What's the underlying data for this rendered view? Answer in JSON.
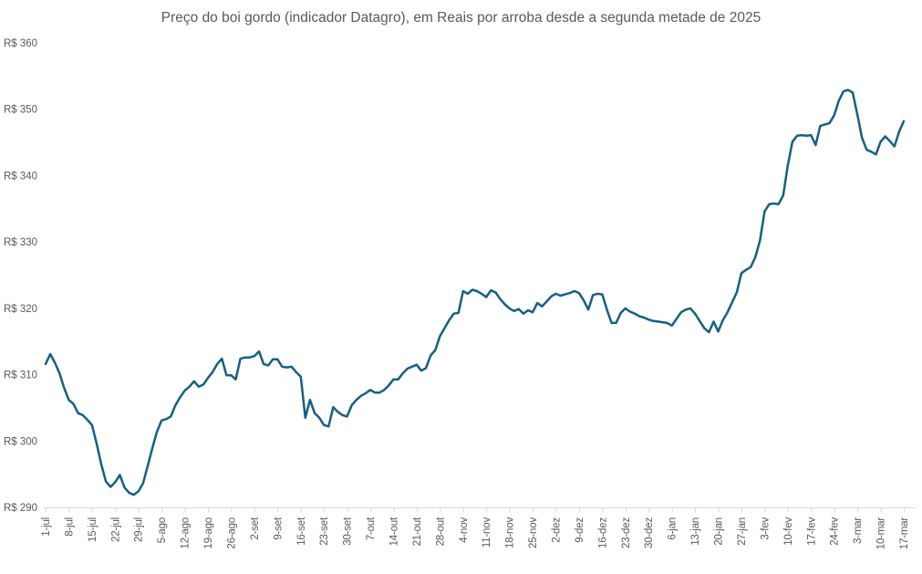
{
  "page": {
    "background": "#ffffff"
  },
  "chart_data": {
    "type": "line",
    "title": "Preço do boi gordo (indicador Datagro), em Reais por arroba desde a segunda metade de 2025",
    "title_color": "#595959",
    "label_color": "#595959",
    "axis_color": "#d9d9d9",
    "grid": false,
    "legend": false,
    "y_axis": {
      "min": 290,
      "max": 360,
      "step": 10,
      "tick_values": [
        360,
        350,
        340,
        330,
        320,
        310,
        300,
        290
      ],
      "tick_labels": [
        "R$ 360",
        "R$ 350",
        "R$ 340",
        "R$ 330",
        "R$ 320",
        "R$ 310",
        "R$ 300",
        "R$ 290"
      ]
    },
    "x_axis": {
      "points_per_tick": 5,
      "tick_labels": [
        "1-jul",
        "8-jul",
        "15-jul",
        "22-jul",
        "29-jul",
        "5-ago",
        "12-ago",
        "19-ago",
        "26-ago",
        "2-set",
        "9-set",
        "16-set",
        "23-set",
        "30-set",
        "7-out",
        "14-out",
        "21-out",
        "28-out",
        "4-nov",
        "11-nov",
        "18-nov",
        "25-nov",
        "2-dez",
        "9-dez",
        "16-dez",
        "23-dez",
        "30-dez",
        "6-jan",
        "13-jan",
        "20-jan",
        "27-jan",
        "3-fev",
        "10-fev",
        "17-fev",
        "24-fev",
        "3-mar",
        "10-mar",
        "17-mar"
      ]
    },
    "series": [
      {
        "color": "#156082",
        "values": [
          311.6,
          313.1,
          311.8,
          310.2,
          308.0,
          306.2,
          305.6,
          304.2,
          303.9,
          303.2,
          302.4,
          299.6,
          296.5,
          293.9,
          293.1,
          293.8,
          294.9,
          293.0,
          292.2,
          291.9,
          292.4,
          293.6,
          296.2,
          298.9,
          301.4,
          303.1,
          303.3,
          303.7,
          305.4,
          306.6,
          307.6,
          308.2,
          309.0,
          308.2,
          308.5,
          309.5,
          310.4,
          311.6,
          312.4,
          309.9,
          309.9,
          309.3,
          312.4,
          312.6,
          312.6,
          312.8,
          313.5,
          311.6,
          311.4,
          312.3,
          312.3,
          311.2,
          311.1,
          311.2,
          310.4,
          309.7,
          303.5,
          306.2,
          304.2,
          303.5,
          302.4,
          302.2,
          305.1,
          304.4,
          303.9,
          303.7,
          305.4,
          306.2,
          306.8,
          307.2,
          307.7,
          307.3,
          307.3,
          307.7,
          308.4,
          309.3,
          309.3,
          310.2,
          310.9,
          311.2,
          311.5,
          310.6,
          311.0,
          312.9,
          313.7,
          315.8,
          317.0,
          318.2,
          319.2,
          319.3,
          322.6,
          322.2,
          322.8,
          322.6,
          322.2,
          321.7,
          322.7,
          322.4,
          321.4,
          320.6,
          320.0,
          319.6,
          319.9,
          319.2,
          319.7,
          319.4,
          320.8,
          320.3,
          321.0,
          321.8,
          322.2,
          321.9,
          322.1,
          322.3,
          322.6,
          322.3,
          321.2,
          319.8,
          322.0,
          322.2,
          322.1,
          319.8,
          317.8,
          317.8,
          319.3,
          320.0,
          319.5,
          319.2,
          318.8,
          318.6,
          318.3,
          318.1,
          318.0,
          317.9,
          317.8,
          317.4,
          318.4,
          319.4,
          319.8,
          320.0,
          319.2,
          318.1,
          317.0,
          316.4,
          318.0,
          316.5,
          318.2,
          319.4,
          320.9,
          322.4,
          325.3,
          325.8,
          326.2,
          327.7,
          330.2,
          334.6,
          335.7,
          335.8,
          335.7,
          337.0,
          341.5,
          345.1,
          346.0,
          346.1,
          346.0,
          346.1,
          344.6,
          347.5,
          347.7,
          347.9,
          349.1,
          351.3,
          352.7,
          352.9,
          352.5,
          349.2,
          345.7,
          343.9,
          343.6,
          343.2,
          345.1,
          345.9,
          345.2,
          344.4,
          346.6,
          348.2
        ]
      }
    ]
  }
}
